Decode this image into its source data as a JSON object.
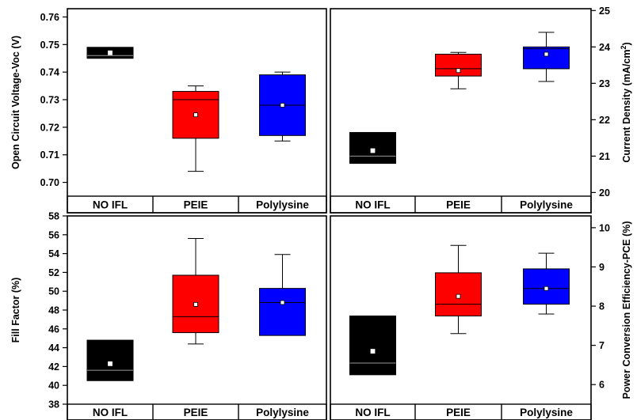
{
  "chart_data": [
    {
      "type": "box",
      "panel": "top-left",
      "ylabel": "Open Circuit Voltage-Voc (V)",
      "yaxis_side": "left",
      "ylim": [
        0.695,
        0.763
      ],
      "ticks": [
        0.7,
        0.71,
        0.72,
        0.73,
        0.74,
        0.75,
        0.76
      ],
      "tick_labels": [
        "0.70",
        "0.71",
        "0.72",
        "0.73",
        "0.74",
        "0.75",
        "0.76"
      ],
      "categories": [
        "NO IFL",
        "PEIE",
        "Polylysine"
      ],
      "colors": [
        "#000000",
        "#ff0000",
        "#0000ff"
      ],
      "boxes": [
        {
          "min": 0.745,
          "q1": 0.745,
          "median": 0.746,
          "q3": 0.749,
          "max": 0.749,
          "mean": 0.747
        },
        {
          "min": 0.704,
          "q1": 0.716,
          "median": 0.73,
          "q3": 0.733,
          "max": 0.735,
          "mean": 0.7245
        },
        {
          "min": 0.715,
          "q1": 0.717,
          "median": 0.728,
          "q3": 0.739,
          "max": 0.74,
          "mean": 0.728
        }
      ]
    },
    {
      "type": "box",
      "panel": "top-right",
      "ylabel": "Current Density (mA/cm",
      "ylabel_sup": "2",
      "ylabel_end": ")",
      "yaxis_side": "right",
      "ylim": [
        19.9,
        25.05
      ],
      "ticks": [
        20,
        21,
        22,
        23,
        24,
        25
      ],
      "tick_labels": [
        "20",
        "21",
        "22",
        "23",
        "24",
        "25"
      ],
      "categories": [
        "NO IFL",
        "PEIE",
        "Polylysine"
      ],
      "colors": [
        "#000000",
        "#ff0000",
        "#0000ff"
      ],
      "boxes": [
        {
          "min": 20.8,
          "q1": 20.8,
          "median": 21.0,
          "q3": 21.65,
          "max": 21.65,
          "mean": 21.15
        },
        {
          "min": 22.85,
          "q1": 23.2,
          "median": 23.4,
          "q3": 23.8,
          "max": 23.85,
          "mean": 23.35
        },
        {
          "min": 23.05,
          "q1": 23.4,
          "median": 23.95,
          "q3": 24.0,
          "max": 24.4,
          "mean": 23.8
        }
      ]
    },
    {
      "type": "box",
      "panel": "bottom-left",
      "ylabel": "Fill Factor (%)",
      "yaxis_side": "left",
      "ylim": [
        38,
        58
      ],
      "ticks": [
        38,
        40,
        42,
        44,
        46,
        48,
        50,
        52,
        54,
        56,
        58
      ],
      "tick_labels": [
        "38",
        "40",
        "42",
        "44",
        "46",
        "48",
        "50",
        "52",
        "54",
        "56",
        "58"
      ],
      "categories": [
        "NO IFL",
        "PEIE",
        "Polylysine"
      ],
      "colors": [
        "#000000",
        "#ff0000",
        "#0000ff"
      ],
      "boxes": [
        {
          "min": 40.5,
          "q1": 40.5,
          "median": 41.6,
          "q3": 44.8,
          "max": 44.8,
          "mean": 42.3
        },
        {
          "min": 44.4,
          "q1": 45.6,
          "median": 47.3,
          "q3": 51.7,
          "max": 55.6,
          "mean": 48.6
        },
        {
          "min": 45.3,
          "q1": 45.3,
          "median": 48.8,
          "q3": 50.3,
          "max": 53.9,
          "mean": 48.8
        }
      ]
    },
    {
      "type": "box",
      "panel": "bottom-right",
      "ylabel": "Power Conversion Efficiency-PCE (%)",
      "yaxis_side": "right",
      "ylim": [
        5.5,
        10.3
      ],
      "ticks": [
        6,
        7,
        8,
        9,
        10
      ],
      "tick_labels": [
        "6",
        "7",
        "8",
        "9",
        "10"
      ],
      "categories": [
        "NO IFL",
        "PEIE",
        "Polylysine"
      ],
      "colors": [
        "#000000",
        "#ff0000",
        "#0000ff"
      ],
      "boxes": [
        {
          "min": 6.25,
          "q1": 6.25,
          "median": 6.55,
          "q3": 7.75,
          "max": 7.75,
          "mean": 6.85
        },
        {
          "min": 7.3,
          "q1": 7.75,
          "median": 8.05,
          "q3": 8.85,
          "max": 9.55,
          "mean": 8.25
        },
        {
          "min": 7.8,
          "q1": 8.05,
          "median": 8.45,
          "q3": 8.95,
          "max": 9.35,
          "mean": 8.45
        }
      ]
    }
  ]
}
